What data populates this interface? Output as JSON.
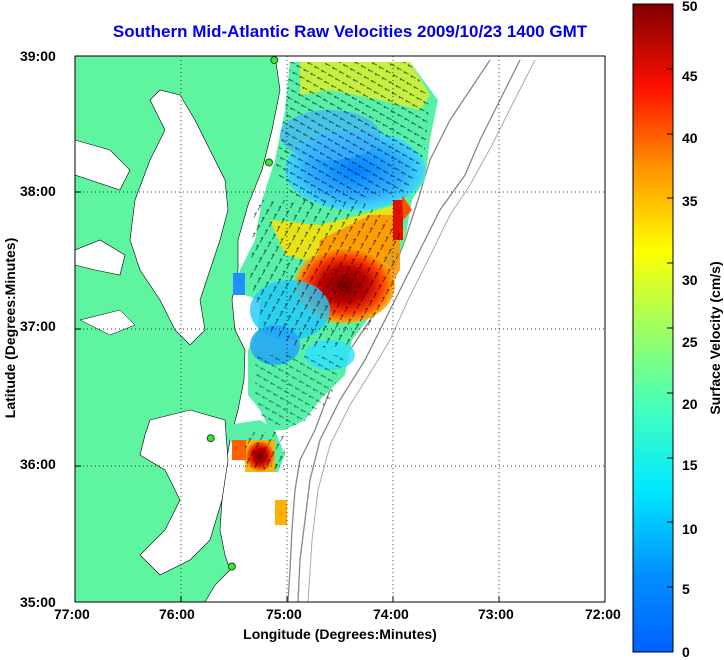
{
  "title": "Southern Mid-Atlantic Raw Velocities 2009/10/23 1400 GMT",
  "axes": {
    "xlabel": "Longitude (Degrees:Minutes)",
    "ylabel": "Latitude (Degrees:Minutes)",
    "xticks": [
      "77:00",
      "76:00",
      "75:00",
      "74:00",
      "73:00",
      "72:00"
    ],
    "yticks": [
      "39:00",
      "38:00",
      "37:00",
      "36:00",
      "35:00"
    ]
  },
  "colorbar": {
    "label": "Surface Velocity (cm/s)",
    "ticks": [
      "0",
      "5",
      "10",
      "15",
      "20",
      "25",
      "30",
      "35",
      "40",
      "45",
      "50"
    ],
    "range": [
      0,
      50
    ]
  },
  "map": {
    "lon_range": [
      -77,
      -72
    ],
    "lat_range": [
      35,
      39
    ],
    "land_color": "#5ff5a0",
    "grid": "dotted",
    "radar_sites": [
      {
        "lon": -75.12,
        "lat": 38.97
      },
      {
        "lon": -75.17,
        "lat": 38.22
      },
      {
        "lon": -75.72,
        "lat": 36.2
      },
      {
        "lon": -75.52,
        "lat": 35.26
      }
    ]
  }
}
